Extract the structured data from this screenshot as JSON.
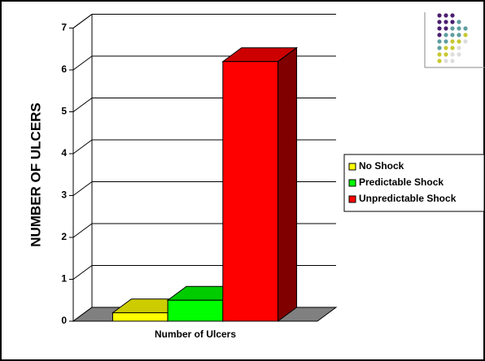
{
  "chart_data": {
    "type": "bar3d",
    "y_title": "NUMBER OF ULCERS",
    "categories": [
      "Number of Ulcers"
    ],
    "series": [
      {
        "name": "No Shock",
        "color": "#ffff00",
        "values": [
          0.2
        ]
      },
      {
        "name": "Predictable Shock",
        "color": "#00ff00",
        "values": [
          0.5
        ]
      },
      {
        "name": "Unpredictable Shock",
        "color": "#ff0000",
        "values": [
          6.2
        ]
      }
    ],
    "ylim": [
      0,
      7
    ],
    "yticks": [
      0,
      1,
      2,
      3,
      4,
      5,
      6,
      7
    ],
    "grid": true,
    "legend": "right"
  }
}
